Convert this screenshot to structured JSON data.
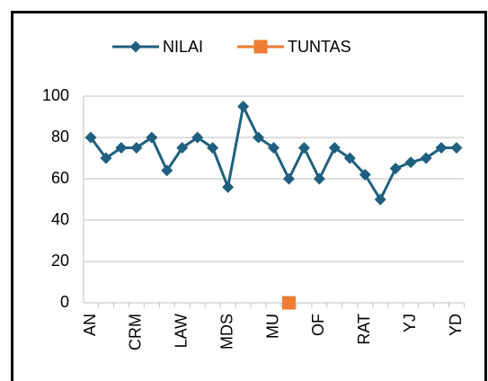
{
  "chart_data": {
    "type": "line",
    "categories": [
      "AN",
      null,
      null,
      "CRM",
      null,
      null,
      "LAW",
      null,
      null,
      "MDS",
      null,
      null,
      "MU",
      null,
      null,
      "OF",
      null,
      null,
      "RAT",
      null,
      null,
      "YJ",
      null,
      null,
      "YD"
    ],
    "series": [
      {
        "name": "NILAI",
        "color": "#1f5f7f",
        "marker": "diamond",
        "values": [
          80,
          70,
          75,
          75,
          80,
          64,
          75,
          80,
          75,
          56,
          95,
          80,
          75,
          60,
          75,
          60,
          75,
          70,
          62,
          50,
          65,
          68,
          70,
          75,
          75
        ]
      },
      {
        "name": "TUNTAS",
        "color": "#ed7d31",
        "marker": "square",
        "values": [
          null,
          null,
          null,
          null,
          null,
          null,
          null,
          null,
          null,
          null,
          null,
          null,
          null,
          0,
          null,
          null,
          null,
          null,
          null,
          null,
          null,
          null,
          null,
          null,
          null
        ]
      }
    ],
    "ylim": [
      0,
      100
    ],
    "yticks": [
      0,
      20,
      40,
      60,
      80,
      100
    ],
    "grid": true,
    "legend": "top"
  }
}
